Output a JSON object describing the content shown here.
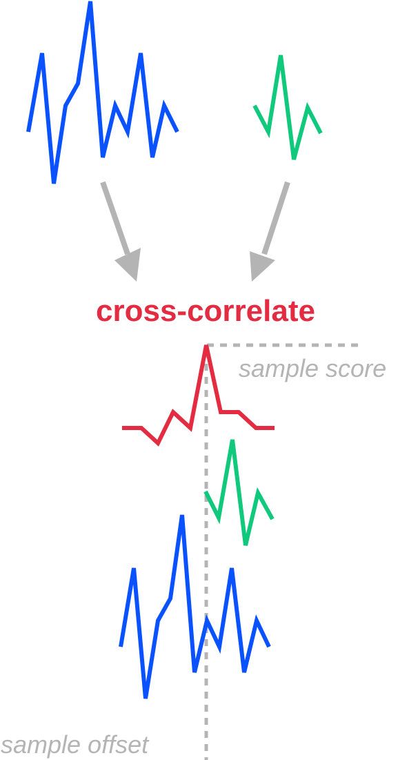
{
  "title": "cross-correlate",
  "labels": {
    "score": "sample score",
    "offset": "sample offset"
  },
  "colors": {
    "signal": "#0a52ff",
    "kernel": "#10c97c",
    "result": "#e32c42",
    "guide": "#b4b4b4"
  },
  "icons": {
    "arrow": "down-arrow-icon"
  }
}
